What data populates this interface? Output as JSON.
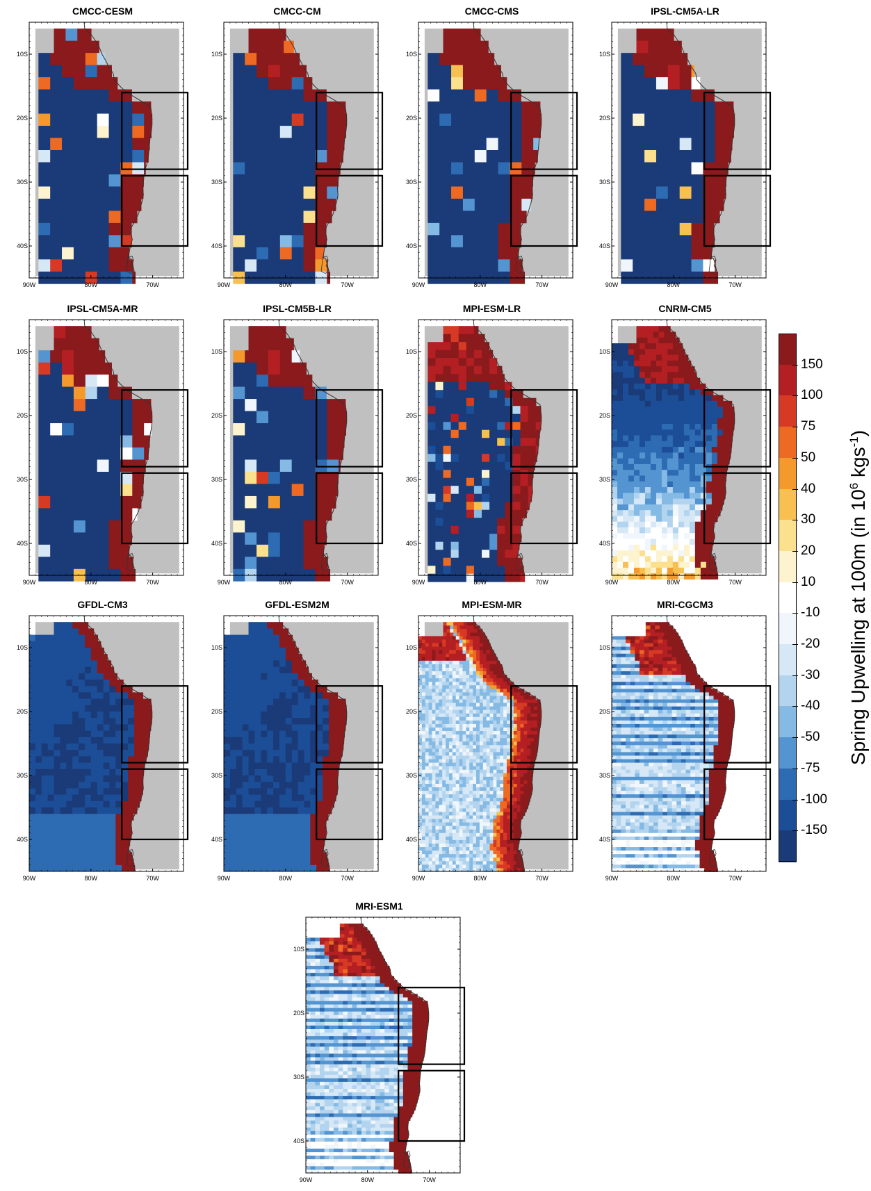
{
  "figure": {
    "colorbar_label": {
      "main": "Spring Upwelling at 100m (in 10",
      "exp": "6",
      "unit": " kgs",
      "unit_exp": "-1",
      "close": ")"
    },
    "colorbar_ticks": [
      "150",
      "100",
      "75",
      "50",
      "40",
      "30",
      "20",
      "10",
      "-10",
      "-20",
      "-30",
      "-40",
      "-50",
      "-75",
      "-100",
      "-150"
    ],
    "colorbar_colors": [
      "#8b1a1c",
      "#b41f23",
      "#d73a24",
      "#ee6a23",
      "#f49a2c",
      "#f7c050",
      "#fbe08e",
      "#fdf3cf",
      "#ffffff",
      "#f0f6fb",
      "#d6e8f6",
      "#b3d4ee",
      "#85bae4",
      "#5495d1",
      "#2d6bb2",
      "#1c4e97",
      "#1a3a78"
    ],
    "lat_labels": [
      "10S",
      "20S",
      "30S",
      "40S"
    ],
    "lon_labels": [
      "90W",
      "80W",
      "70W"
    ],
    "boxes": [
      {
        "region": "north",
        "lat_top": -16,
        "lat_bottom": -28
      },
      {
        "region": "south",
        "lat_top": -29,
        "lat_bottom": -40
      }
    ]
  },
  "panels": [
    {
      "title": "CMCC-CESM",
      "res": "coarse",
      "ocean_bg": "gray",
      "seed": 11
    },
    {
      "title": "CMCC-CM",
      "res": "coarse",
      "ocean_bg": "gray",
      "seed": 23
    },
    {
      "title": "CMCC-CMS",
      "res": "coarse",
      "ocean_bg": "gray",
      "seed": 37
    },
    {
      "title": "IPSL-CM5A-LR",
      "res": "coarse",
      "ocean_bg": "gray",
      "seed": 41
    },
    {
      "title": "IPSL-CM5A-MR",
      "res": "coarse",
      "ocean_bg": "gray",
      "seed": 53
    },
    {
      "title": "IPSL-CM5B-LR",
      "res": "coarse",
      "ocean_bg": "gray",
      "seed": 67
    },
    {
      "title": "MPI-ESM-LR",
      "res": "medium",
      "ocean_bg": "gray",
      "seed": 71
    },
    {
      "title": "CNRM-CM5",
      "res": "fine",
      "ocean_bg": "gray",
      "seed": 83
    },
    {
      "title": "GFDL-CM3",
      "res": "smooth",
      "ocean_bg": "gray",
      "seed": 97
    },
    {
      "title": "GFDL-ESM2M",
      "res": "smooth",
      "ocean_bg": "gray",
      "seed": 101
    },
    {
      "title": "MPI-ESM-MR",
      "res": "veryfine",
      "ocean_bg": "gray",
      "seed": 113
    },
    {
      "title": "MRI-CGCM3",
      "res": "striped",
      "ocean_bg": "white",
      "seed": 127
    },
    {
      "title": "MRI-ESM1",
      "res": "striped",
      "ocean_bg": "white",
      "seed": 131
    }
  ]
}
